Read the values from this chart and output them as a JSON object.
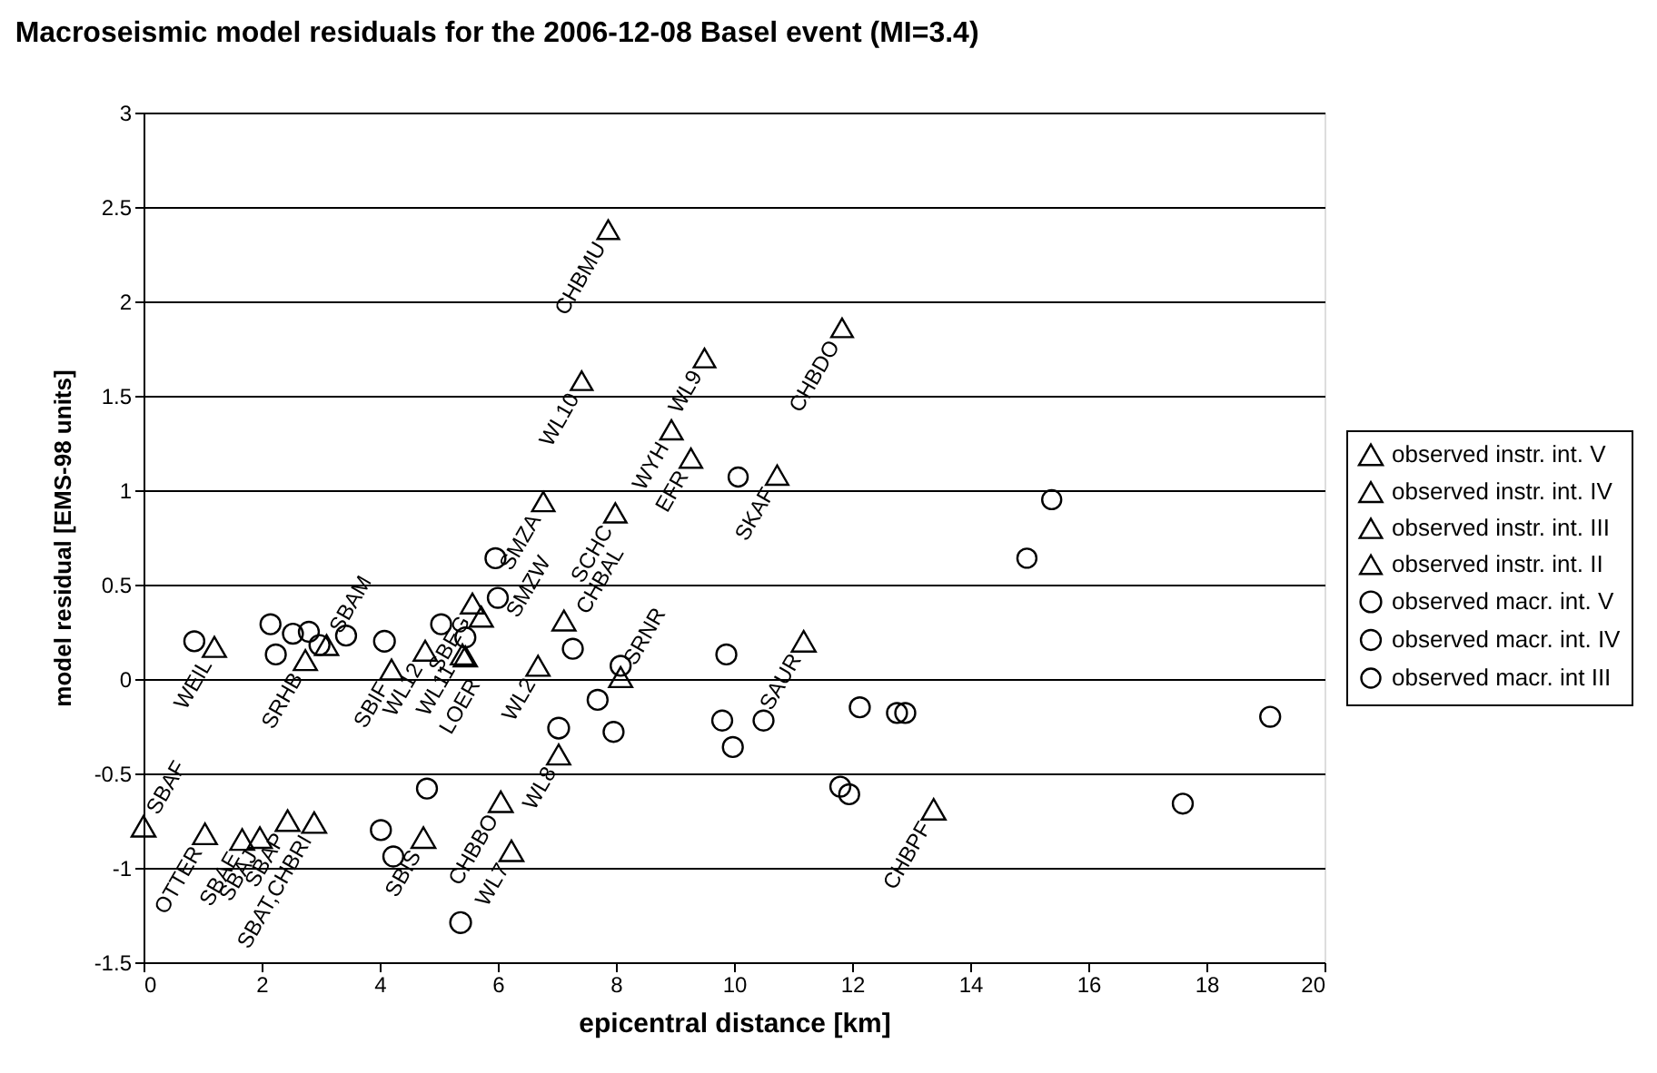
{
  "chart_data": {
    "type": "scatter",
    "title": "Macroseismic model residuals for the 2006-12-08 Basel event (MI=3.4)",
    "xlabel": "epicentral distance [km]",
    "ylabel": "model residual [EMS-98 units]",
    "xlim": [
      0,
      20
    ],
    "xticks": [
      0,
      2,
      4,
      6,
      8,
      10,
      12,
      14,
      16,
      18,
      20
    ],
    "ylim": [
      -1.5,
      3
    ],
    "yticks": [
      -1.5,
      -1,
      -0.5,
      0,
      0.5,
      1,
      1.5,
      2,
      2.5,
      3
    ],
    "grid": "y",
    "legend": "right",
    "series": [
      {
        "name": "observed instr. int. V",
        "color": "#000000",
        "marker": "triangle",
        "x": [
          0,
          1.04,
          1.67,
          1.97,
          2.44,
          2.89,
          4.74,
          6.05,
          6.23,
          13.38,
          11.18
        ],
        "values": [
          -0.78,
          -0.82,
          -0.85,
          -0.84,
          -0.75,
          -0.76,
          -0.84,
          -0.65,
          -0.91,
          -0.69,
          0.2
        ]
      },
      {
        "name": "observed instr. int. IV",
        "color": "#000000",
        "marker": "triangle",
        "x": [
          1.2,
          2.74,
          3.1,
          4.2,
          4.77,
          5.4,
          5.45,
          5.57,
          5.72,
          7.12,
          6.68,
          7.03,
          8.08
        ],
        "values": [
          0.17,
          0.1,
          0.18,
          0.05,
          0.15,
          0.13,
          0.12,
          0.4,
          0.33,
          0.31,
          0.07,
          -0.4,
          0.01
        ]
      },
      {
        "name": "observed instr. int. III",
        "color": "#000000",
        "marker": "triangle",
        "x": [
          6.77,
          7.99,
          8.94,
          9.27,
          10.73
        ],
        "values": [
          0.94,
          0.88,
          1.32,
          1.17,
          1.08
        ]
      },
      {
        "name": "observed instr. int. II",
        "color": "#000000",
        "marker": "triangle",
        "x": [
          7.87,
          7.42,
          9.5,
          11.83
        ],
        "values": [
          2.38,
          1.58,
          1.7,
          1.86
        ]
      },
      {
        "name": "observed macr. int. V",
        "color": "#000000",
        "marker": "circle",
        "x": [
          5.37,
          7.03,
          4.08
        ],
        "values": [
          -1.29,
          -0.26,
          0.2
        ]
      },
      {
        "name": "observed macr. int. IV",
        "color": "#000000",
        "marker": "circle",
        "x": [
          0.86,
          2.15,
          2.24,
          2.53,
          2.8,
          2.98,
          3.43,
          5.04,
          5.45,
          4.02,
          4.23,
          4.8,
          5.96,
          6.0,
          7.27,
          8.08,
          7.69,
          7.96,
          9.87,
          9.8,
          9.98,
          10.5,
          12.13,
          12.76,
          12.9,
          19.08,
          11.8,
          11.95,
          17.6
        ],
        "values": [
          0.2,
          0.29,
          0.13,
          0.24,
          0.25,
          0.18,
          0.23,
          0.29,
          0.22,
          -0.8,
          -0.94,
          -0.58,
          0.64,
          0.43,
          0.16,
          0.07,
          -0.11,
          -0.28,
          0.13,
          -0.22,
          -0.36,
          -0.22,
          -0.15,
          -0.18,
          -0.18,
          -0.2,
          -0.57,
          -0.61,
          -0.66
        ]
      },
      {
        "name": "observed macr. int III",
        "color": "#000000",
        "marker": "circle",
        "x": [
          10.07,
          14.96,
          15.38
        ],
        "values": [
          1.07,
          0.64,
          0.95
        ]
      }
    ],
    "annotations": [
      {
        "text": "SBAF",
        "x": 0,
        "y": -0.78
      },
      {
        "text": "OTTER",
        "x": 1.04,
        "y": -0.82
      },
      {
        "text": "SBAE",
        "x": 1.67,
        "y": -0.85
      },
      {
        "text": "SBAJ",
        "x": 1.97,
        "y": -0.84
      },
      {
        "text": "SBAP",
        "x": 2.44,
        "y": -0.75
      },
      {
        "text": "SBAT,CHBRI",
        "x": 2.89,
        "y": -0.76
      },
      {
        "text": "SBIS",
        "x": 4.74,
        "y": -0.84
      },
      {
        "text": "CHBBO",
        "x": 6.05,
        "y": -0.65
      },
      {
        "text": "WL7",
        "x": 6.23,
        "y": -0.91
      },
      {
        "text": "CHBPF",
        "x": 13.38,
        "y": -0.69
      },
      {
        "text": "SAUR",
        "x": 11.18,
        "y": 0.2
      },
      {
        "text": "WEIL",
        "x": 1.2,
        "y": 0.17
      },
      {
        "text": "SRHB",
        "x": 2.74,
        "y": 0.1
      },
      {
        "text": "SBAM",
        "x": 3.1,
        "y": 0.18
      },
      {
        "text": "SBIF",
        "x": 4.2,
        "y": 0.05
      },
      {
        "text": "WL12",
        "x": 4.77,
        "y": 0.15
      },
      {
        "text": "WL11",
        "x": 5.4,
        "y": 0.13
      },
      {
        "text": "LOER",
        "x": 5.45,
        "y": 0.12
      },
      {
        "text": "SBEG",
        "x": 5.57,
        "y": 0.4
      },
      {
        "text": "SMZW",
        "x": 5.72,
        "y": 0.33
      },
      {
        "text": "CHBAL",
        "x": 7.12,
        "y": 0.31
      },
      {
        "text": "WL2",
        "x": 6.68,
        "y": 0.07
      },
      {
        "text": "WL8",
        "x": 7.03,
        "y": -0.4
      },
      {
        "text": "SRNR",
        "x": 8.08,
        "y": 0.01
      },
      {
        "text": "SMZA",
        "x": 6.77,
        "y": 0.94
      },
      {
        "text": "SCHC",
        "x": 7.99,
        "y": 0.88
      },
      {
        "text": "WYH",
        "x": 8.94,
        "y": 1.32
      },
      {
        "text": "EFR",
        "x": 9.27,
        "y": 1.17
      },
      {
        "text": "SKAF",
        "x": 10.73,
        "y": 1.08
      },
      {
        "text": "CHBMU",
        "x": 7.87,
        "y": 2.38
      },
      {
        "text": "WL10",
        "x": 7.42,
        "y": 1.58
      },
      {
        "text": "WL9",
        "x": 9.5,
        "y": 1.7
      },
      {
        "text": "CHBDO",
        "x": 11.83,
        "y": 1.86
      }
    ]
  }
}
